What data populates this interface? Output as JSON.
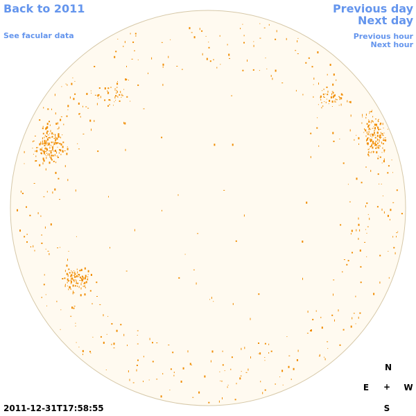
{
  "nav": {
    "back_label": "Back to 2011",
    "facular_label": "See facular data",
    "prev_day_label": "Previous day",
    "next_day_label": "Next day",
    "prev_hour_label": "Previous hour",
    "next_hour_label": "Next hour"
  },
  "timestamp": "2011-12-31T17:58:55",
  "compass": {
    "north": "N",
    "south": "S",
    "east": "E",
    "west": "W",
    "center": "+"
  },
  "colors": {
    "link": "#6495ed",
    "disk_fill": "#fffaf0",
    "disk_edge": "#d6c8a8",
    "facula": "#f08c00"
  }
}
